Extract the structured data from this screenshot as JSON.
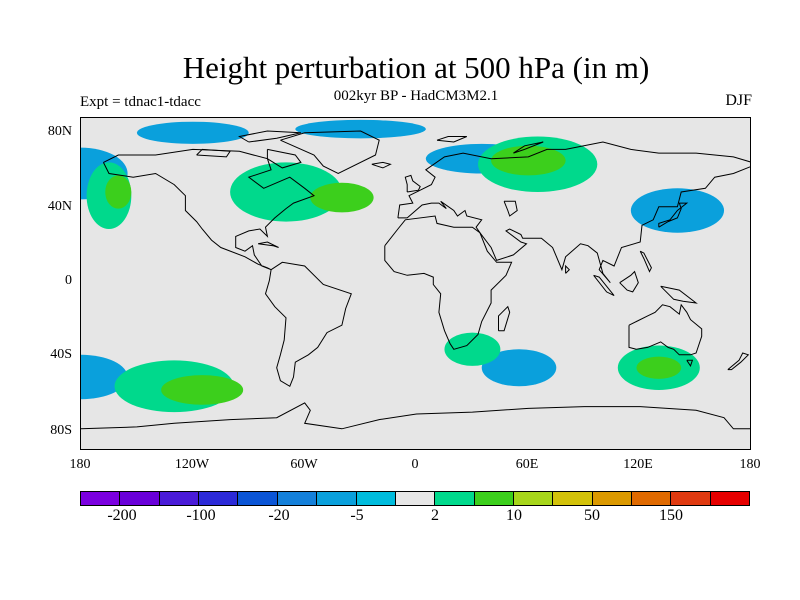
{
  "header": {
    "title": "Height perturbation at 500 hPa (in m)",
    "subtitle": "002kyr BP - HadCM3M2.1",
    "experiment": "Expt = tdnac1-tdacc",
    "season": "DJF"
  },
  "map": {
    "projection": "cylindrical equidistant",
    "lat_labels": [
      "80N",
      "40N",
      "0",
      "40S",
      "80S"
    ],
    "lon_labels": [
      "180",
      "120W",
      "60W",
      "0",
      "60E",
      "120E",
      "180"
    ],
    "background_color": "#e6e6e6",
    "field_regions": [
      {
        "center": [
          -180,
          60
        ],
        "radius": [
          25,
          14
        ],
        "level": "-20"
      },
      {
        "center": [
          -120,
          82
        ],
        "radius": [
          30,
          6
        ],
        "level": "-20"
      },
      {
        "center": [
          -30,
          84
        ],
        "radius": [
          35,
          5
        ],
        "level": "-20"
      },
      {
        "center": [
          35,
          68
        ],
        "radius": [
          30,
          8
        ],
        "level": "-20"
      },
      {
        "center": [
          140,
          40
        ],
        "radius": [
          25,
          12
        ],
        "level": "-20"
      },
      {
        "center": [
          -180,
          -50
        ],
        "radius": [
          25,
          12
        ],
        "level": "-20"
      },
      {
        "center": [
          55,
          -45
        ],
        "radius": [
          20,
          10
        ],
        "level": "-20"
      },
      {
        "center": [
          -165,
          48
        ],
        "radius": [
          12,
          18
        ],
        "level": "10"
      },
      {
        "center": [
          -70,
          50
        ],
        "radius": [
          30,
          16
        ],
        "level": "10"
      },
      {
        "center": [
          65,
          65
        ],
        "radius": [
          32,
          15
        ],
        "level": "10"
      },
      {
        "center": [
          130,
          -45
        ],
        "radius": [
          22,
          12
        ],
        "level": "10"
      },
      {
        "center": [
          -130,
          -55
        ],
        "radius": [
          32,
          14
        ],
        "level": "10"
      },
      {
        "center": [
          30,
          -35
        ],
        "radius": [
          15,
          9
        ],
        "level": "10"
      },
      {
        "center": [
          -160,
          50
        ],
        "radius": [
          7,
          9
        ],
        "level": "50"
      },
      {
        "center": [
          -40,
          47
        ],
        "radius": [
          17,
          8
        ],
        "level": "50"
      },
      {
        "center": [
          60,
          67
        ],
        "radius": [
          20,
          8
        ],
        "level": "50"
      },
      {
        "center": [
          130,
          -45
        ],
        "radius": [
          12,
          6
        ],
        "level": "50"
      },
      {
        "center": [
          -115,
          -57
        ],
        "radius": [
          22,
          8
        ],
        "level": "50"
      }
    ]
  },
  "colorbar": {
    "colors": [
      "#7b00e0",
      "#6900d9",
      "#4a1bd8",
      "#2c2ad8",
      "#0b55d6",
      "#1480da",
      "#0aa0dc",
      "#00bcdd",
      "#e6e6e6",
      "#00d98c",
      "#3ccf1c",
      "#a7d61b",
      "#d3c20a",
      "#db9900",
      "#e06a00",
      "#e03a10",
      "#e60000"
    ],
    "labels": [
      "-200",
      "-100",
      "-20",
      "-5",
      "2",
      "10",
      "50",
      "150"
    ],
    "level_colors": {
      "-5": "#00bcdd",
      "-20": "#0aa0dc",
      "2": "#e6e6e6",
      "10": "#00d98c",
      "50": "#3ccf1c",
      "150": "#a7d61b"
    }
  }
}
